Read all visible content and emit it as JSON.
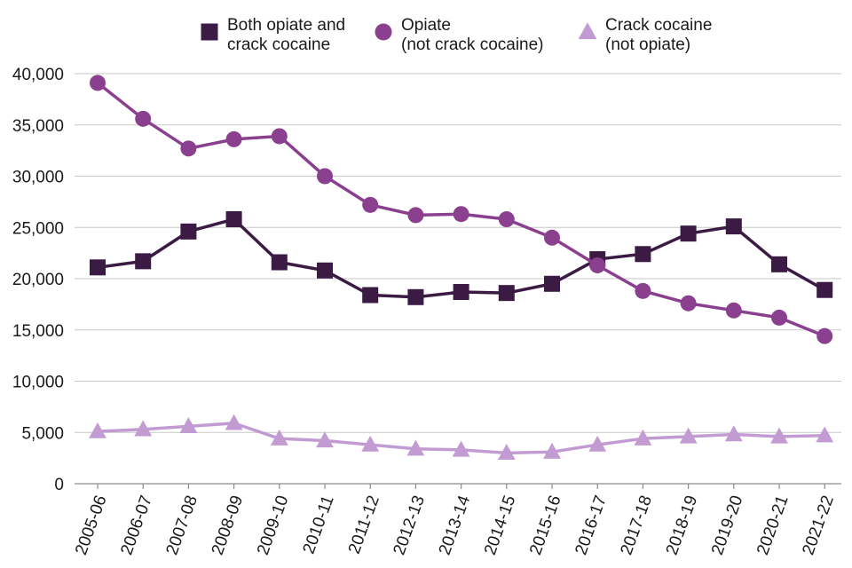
{
  "chart_data": {
    "type": "line",
    "title": "",
    "xlabel": "",
    "ylabel": "",
    "categories": [
      "2005-06",
      "2006-07",
      "2007-08",
      "2008-09",
      "2009-10",
      "2010-11",
      "2011-12",
      "2012-13",
      "2013-14",
      "2014-15",
      "2015-16",
      "2016-17",
      "2017-18",
      "2018-19",
      "2019-20",
      "2020-21",
      "2021-22"
    ],
    "ylim": [
      0,
      40000
    ],
    "yticks": [
      0,
      5000,
      10000,
      15000,
      20000,
      25000,
      30000,
      35000,
      40000
    ],
    "ytick_labels": [
      "0",
      "5,000",
      "10,000",
      "15,000",
      "20,000",
      "25,000",
      "30,000",
      "35,000",
      "40,000"
    ],
    "grid": "horizontal",
    "legend_position": "top",
    "series": [
      {
        "name": "Both opiate and crack cocaine",
        "legend_lines": [
          "Both opiate and",
          "crack cocaine"
        ],
        "marker": "square",
        "color": "#3b1a44",
        "values": [
          21100,
          21700,
          24600,
          25800,
          21600,
          20800,
          18400,
          18200,
          18700,
          18600,
          19500,
          21900,
          22400,
          24400,
          25100,
          21400,
          18900
        ]
      },
      {
        "name": "Opiate (not crack cocaine)",
        "legend_lines": [
          "Opiate",
          "(not crack cocaine)"
        ],
        "marker": "circle",
        "color": "#8b3f8f",
        "values": [
          39100,
          35600,
          32700,
          33600,
          33900,
          30000,
          27200,
          26200,
          26300,
          25800,
          24000,
          21300,
          18800,
          17600,
          16900,
          16200,
          14400
        ]
      },
      {
        "name": "Crack cocaine (not opiate)",
        "legend_lines": [
          "Crack cocaine",
          "(not opiate)"
        ],
        "marker": "triangle",
        "color": "#c29bd3",
        "values": [
          5100,
          5300,
          5600,
          5900,
          4400,
          4200,
          3800,
          3400,
          3300,
          3000,
          3100,
          3800,
          4400,
          4600,
          4800,
          4600,
          4700
        ]
      }
    ]
  }
}
